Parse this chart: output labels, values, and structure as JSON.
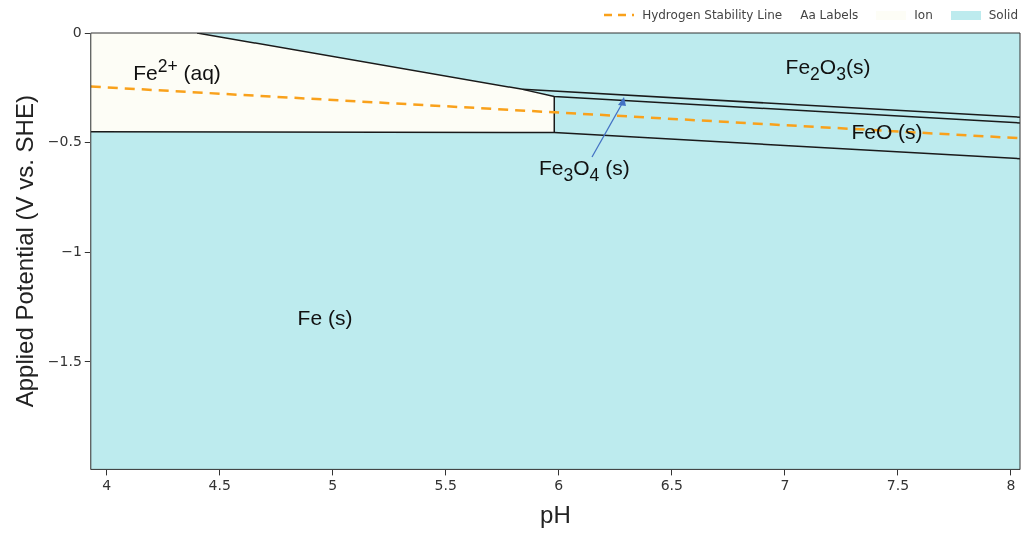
{
  "chart_data": {
    "type": "line",
    "xlabel": "pH",
    "ylabel": "Applied Potential (V vs. SHE)",
    "xlim": [
      3.93,
      8.04
    ],
    "xticks": [
      4,
      4.5,
      5,
      5.5,
      6,
      6.5,
      7,
      7.5,
      8
    ],
    "ylim": [
      -1.99,
      0
    ],
    "yticks": [
      0,
      {
        "value": -0.5,
        "label": "−0.5"
      },
      {
        "value": -1,
        "label": "−1"
      },
      {
        "value": -1.5,
        "label": "−1.5"
      }
    ],
    "legend": "top right",
    "marker": "none",
    "bands": [
      {
        "axis": "y",
        "from": -1.99,
        "to": 0,
        "label": "Solid",
        "color": "#bdebee"
      }
    ],
    "series": [
      {
        "type": "area",
        "name": "Ion",
        "color": "#fdfdf6",
        "x": [
          3.93,
          4.4,
          5.84,
          5.98,
          5.98,
          3.93
        ],
        "values": [
          0,
          0,
          -0.257,
          -0.29,
          -0.454,
          -0.45
        ]
      },
      {
        "color": "#1a1a1a",
        "x": [
          4.4,
          5.84,
          5.98,
          8.04
        ],
        "values": [
          0,
          -0.257,
          -0.29,
          -0.41
        ]
      },
      {
        "color": "#1a1a1a",
        "x": [
          5.84,
          8.04
        ],
        "values": [
          -0.257,
          -0.384
        ]
      },
      {
        "color": "#1a1a1a",
        "x": [
          3.93,
          5.98,
          8.04
        ],
        "values": [
          -0.45,
          -0.454,
          -0.573
        ]
      },
      {
        "color": "#1a1a1a",
        "x": [
          5.98,
          5.98
        ],
        "values": [
          -0.454,
          -0.29
        ]
      },
      {
        "name": "Hydrogen Stability Line",
        "color": "#f9a11b",
        "line_style": "dashed",
        "x": [
          3.93,
          8.04
        ],
        "values": [
          -0.244,
          -0.48
        ]
      }
    ],
    "annotations": [
      "Aa Labels",
      "Fe$^{2+}$ (aq)",
      "Fe$_{2}$O$_{3}$(s)",
      "FeO (s)",
      {
        "text": "Fe$_{3}$O$_{4}$ (s)",
        "x": 6.29,
        "y": -0.29
      },
      "Fe (s)"
    ]
  }
}
